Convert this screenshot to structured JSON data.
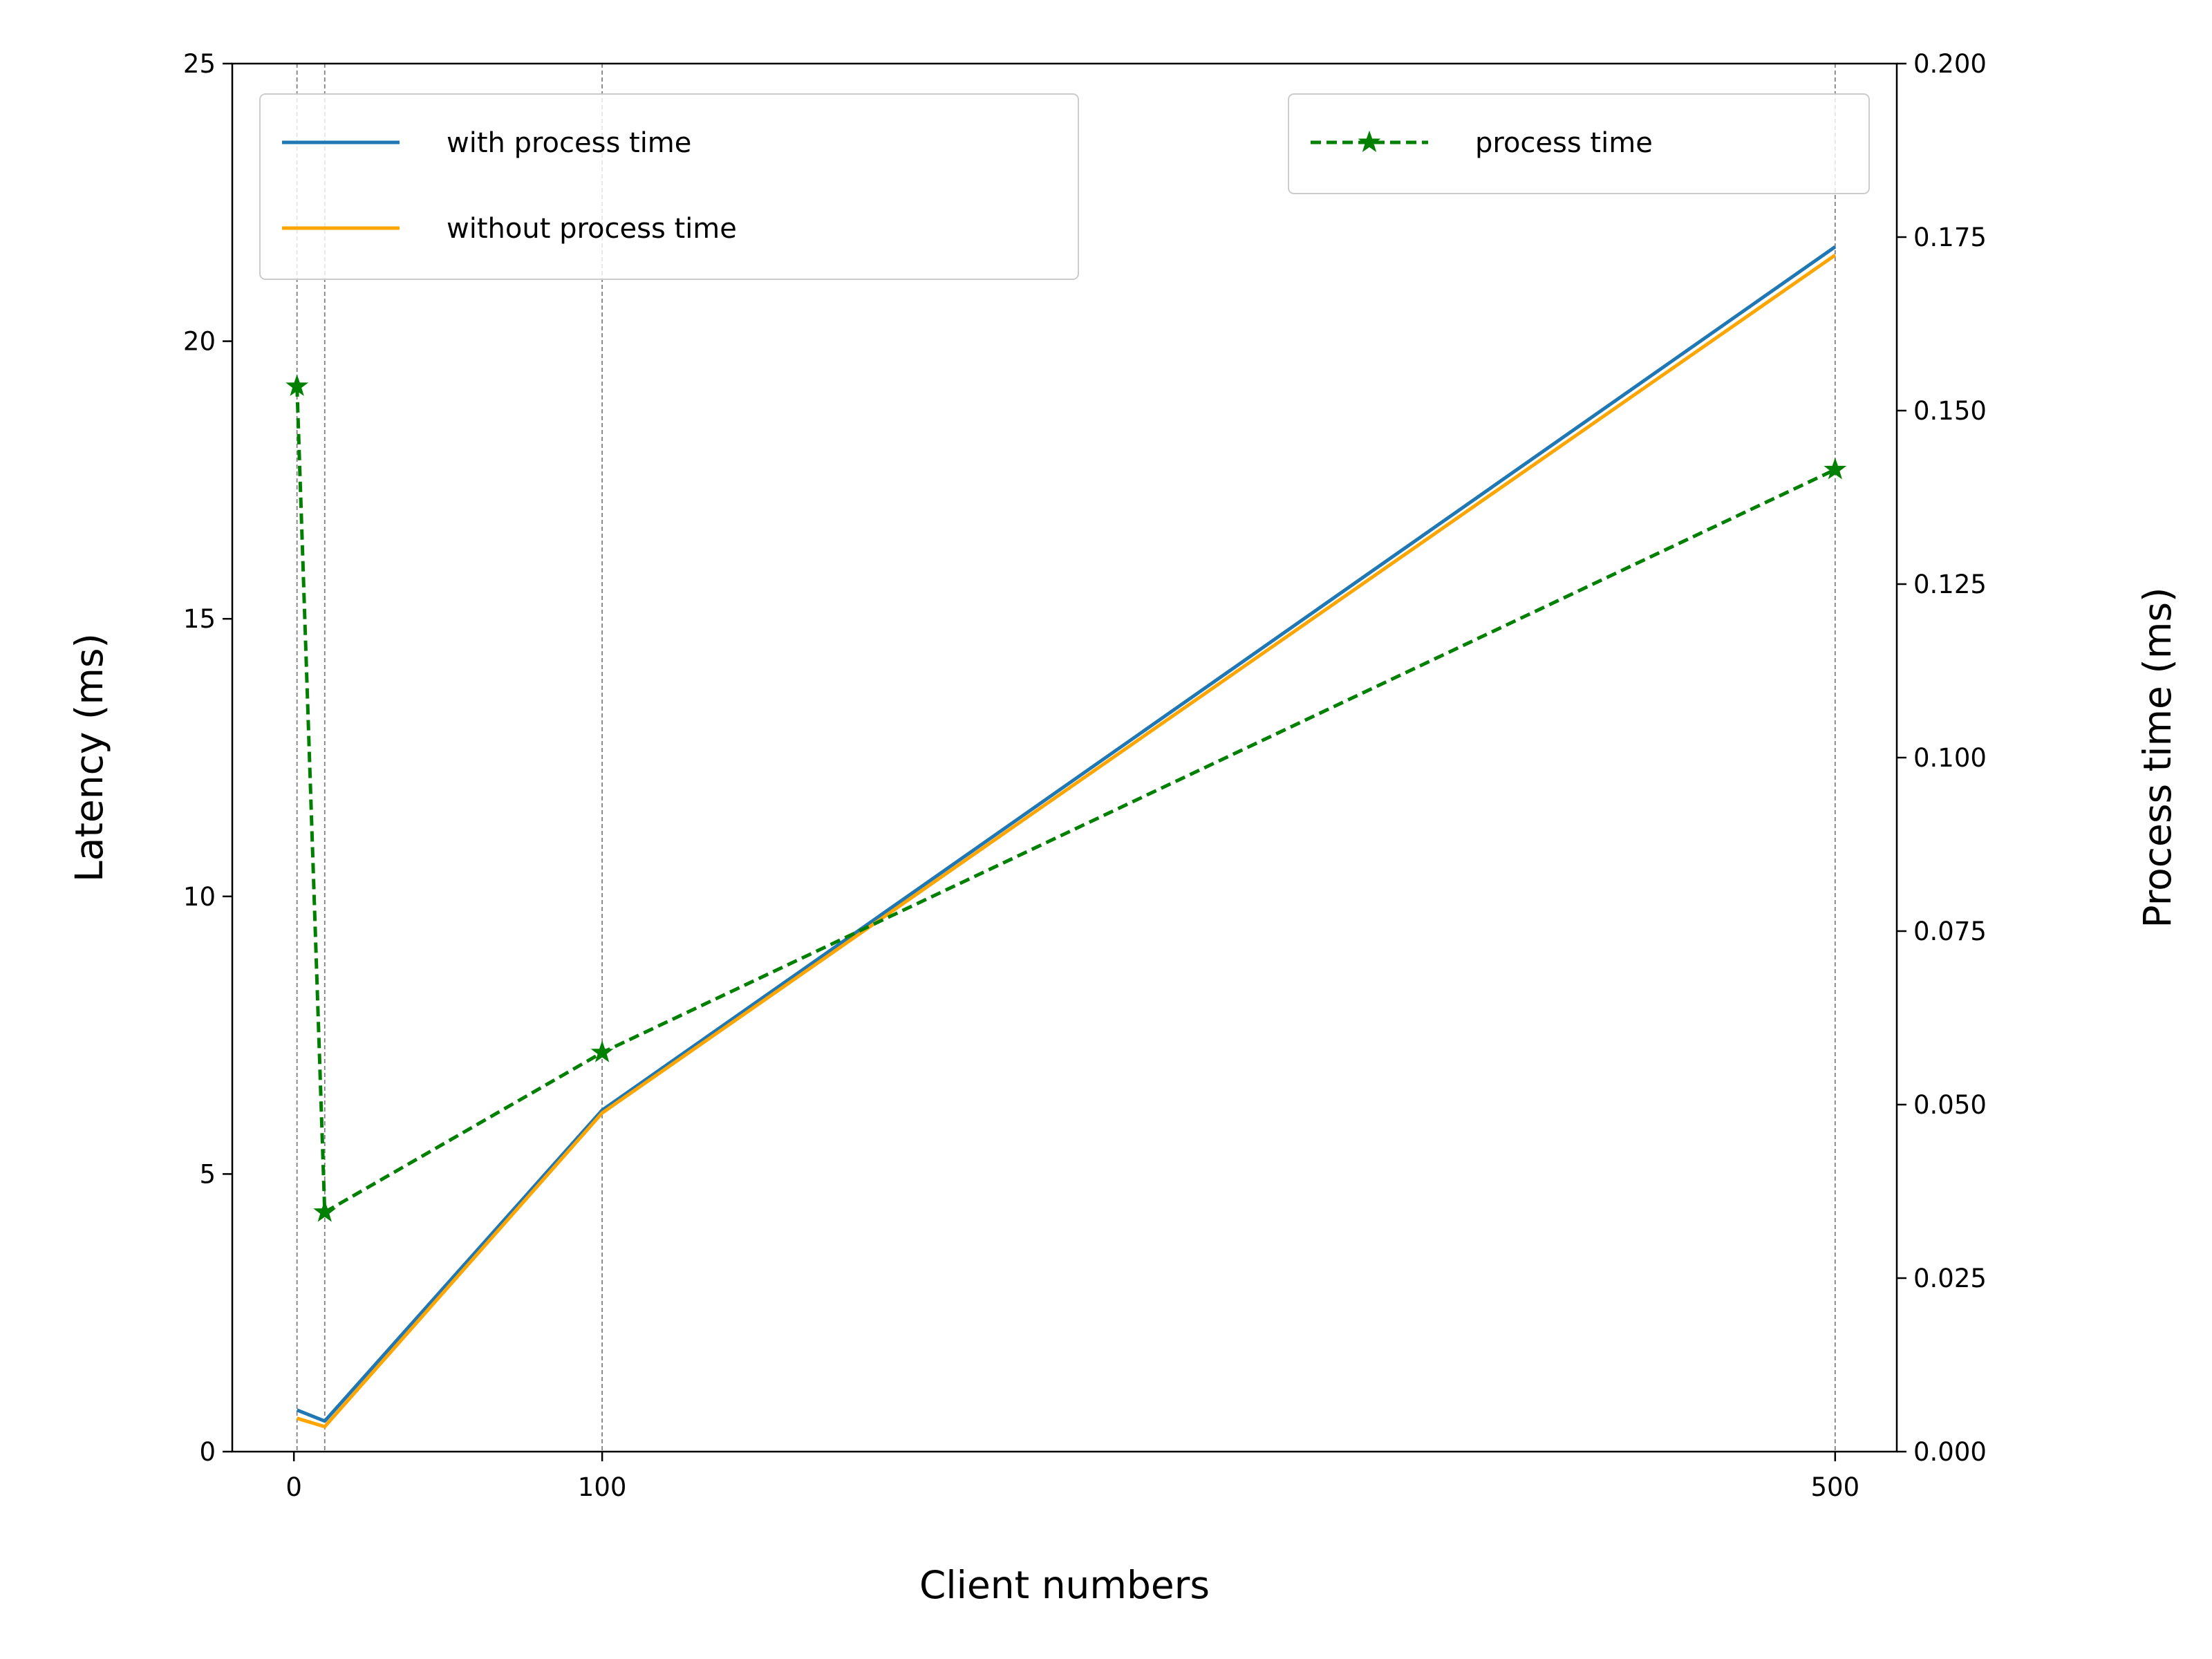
{
  "chart_data": {
    "type": "line",
    "x": [
      1,
      10,
      100,
      500
    ],
    "xticks": [
      0,
      100,
      500
    ],
    "xlabel": "Client numbers",
    "xlim": [
      -20,
      520
    ],
    "ylabel": "Latency (ms)",
    "ylim": [
      0,
      25
    ],
    "yticks": [
      0,
      5,
      10,
      15,
      20,
      25
    ],
    "y2label": "Process time (ms)",
    "y2lim": [
      0,
      0.2
    ],
    "y2ticks": [
      "0.000",
      "0.025",
      "0.050",
      "0.075",
      "0.100",
      "0.125",
      "0.150",
      "0.175",
      "0.200"
    ],
    "grid": "vertical dashed lines at data x positions",
    "series": [
      {
        "name": "with process time",
        "axis": "left",
        "values": [
          0.75,
          0.55,
          6.15,
          21.7
        ],
        "color": "#1f77b4",
        "style": "solid"
      },
      {
        "name": "without process time",
        "axis": "left",
        "values": [
          0.6,
          0.45,
          6.1,
          21.55
        ],
        "color": "#ffa500",
        "style": "solid"
      },
      {
        "name": "process time",
        "axis": "right",
        "values": [
          0.1535,
          0.0345,
          0.0575,
          0.1415
        ],
        "color": "#008000",
        "style": "dashed",
        "marker": "star"
      }
    ],
    "legends": [
      {
        "placement": "top-left",
        "series": [
          "with process time",
          "without process time"
        ]
      },
      {
        "placement": "top-right",
        "series": [
          "process time"
        ]
      }
    ]
  }
}
